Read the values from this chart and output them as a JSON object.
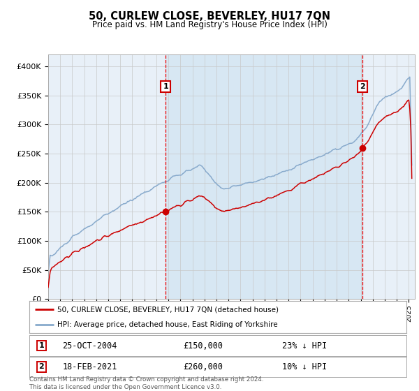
{
  "title": "50, CURLEW CLOSE, BEVERLEY, HU17 7QN",
  "subtitle": "Price paid vs. HM Land Registry's House Price Index (HPI)",
  "ylim": [
    0,
    420000
  ],
  "yticks": [
    0,
    50000,
    100000,
    150000,
    200000,
    250000,
    300000,
    350000,
    400000
  ],
  "ytick_labels": [
    "£0",
    "£50K",
    "£100K",
    "£150K",
    "£200K",
    "£250K",
    "£300K",
    "£350K",
    "£400K"
  ],
  "sale1_price": 150000,
  "sale1_label": "25-OCT-2004",
  "sale1_pct": "23% ↓ HPI",
  "sale1_year": 2004.81,
  "sale2_price": 260000,
  "sale2_label": "18-FEB-2021",
  "sale2_pct": "10% ↓ HPI",
  "sale2_year": 2021.13,
  "legend1": "50, CURLEW CLOSE, BEVERLEY, HU17 7QN (detached house)",
  "legend2": "HPI: Average price, detached house, East Riding of Yorkshire",
  "footnote": "Contains HM Land Registry data © Crown copyright and database right 2024.\nThis data is licensed under the Open Government Licence v3.0.",
  "plot_bg": "#e8f0f8",
  "grid_color": "#c8c8c8",
  "hpi_color": "#88aacc",
  "price_color": "#cc0000",
  "marker_color": "#cc0000",
  "vline_color": "#ee0000",
  "box_color": "#cc0000",
  "xlim_start": 1995,
  "xlim_end": 2025.5
}
